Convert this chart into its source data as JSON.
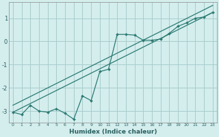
{
  "xlabel": "Humidex (Indice chaleur)",
  "background_color": "#d4eded",
  "grid_color": "#a8cccc",
  "line_color": "#2a7a72",
  "xlim": [
    -0.5,
    23.5
  ],
  "ylim": [
    -3.5,
    1.7
  ],
  "yticks": [
    -3,
    -2,
    -1,
    0,
    1
  ],
  "xticks": [
    0,
    1,
    2,
    3,
    4,
    5,
    6,
    7,
    8,
    9,
    10,
    11,
    12,
    13,
    14,
    15,
    16,
    17,
    18,
    19,
    20,
    21,
    22,
    23
  ],
  "curve_x": [
    0,
    1,
    2,
    3,
    4,
    5,
    6,
    7,
    8,
    9,
    10,
    11,
    12,
    13,
    14,
    15,
    16,
    17,
    18,
    19,
    20,
    21,
    22,
    23
  ],
  "curve_y": [
    -3.05,
    -3.15,
    -2.75,
    -3.0,
    -3.05,
    -2.9,
    -3.1,
    -3.35,
    -2.35,
    -2.55,
    -1.3,
    -1.2,
    0.3,
    0.3,
    0.27,
    0.05,
    0.05,
    0.1,
    0.35,
    0.65,
    0.8,
    1.0,
    1.05,
    1.25
  ],
  "line1_x": [
    0,
    23
  ],
  "line1_y": [
    -3.05,
    1.25
  ],
  "line2_x": [
    0,
    23
  ],
  "line2_y": [
    -2.75,
    1.55
  ]
}
